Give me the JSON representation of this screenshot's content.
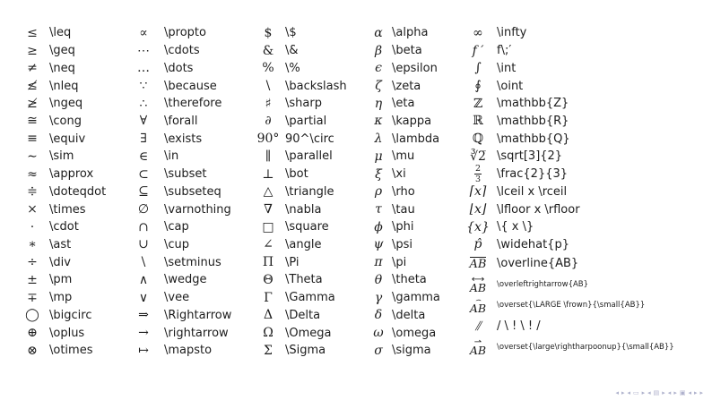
{
  "page": {
    "background": "#ffffff",
    "text_color": "#1c1c1c"
  },
  "table": {
    "columns": [
      {
        "rows": [
          {
            "sym": "≤",
            "cmd": "\\leq"
          },
          {
            "sym": "≥",
            "cmd": "\\geq"
          },
          {
            "sym": "≠",
            "cmd": "\\neq"
          },
          {
            "sym": "≰",
            "cmd": "\\nleq"
          },
          {
            "sym": "≱",
            "cmd": "\\ngeq"
          },
          {
            "sym": "≅",
            "cmd": "\\cong"
          },
          {
            "sym": "≡",
            "cmd": "\\equiv"
          },
          {
            "sym": "∼",
            "cmd": "\\sim"
          },
          {
            "sym": "≈",
            "cmd": "\\approx"
          },
          {
            "sym": "≑",
            "cmd": "\\doteqdot"
          },
          {
            "sym": "×",
            "cmd": "\\times"
          },
          {
            "sym": "·",
            "cmd": "\\cdot"
          },
          {
            "sym": "∗",
            "cmd": "\\ast"
          },
          {
            "sym": "÷",
            "cmd": "\\div"
          },
          {
            "sym": "±",
            "cmd": "\\pm"
          },
          {
            "sym": "∓",
            "cmd": "\\mp"
          },
          {
            "sym": "◯",
            "cmd": "\\bigcirc"
          },
          {
            "sym": "⊕",
            "cmd": "\\oplus"
          },
          {
            "sym": "⊗",
            "cmd": "\\otimes"
          }
        ]
      },
      {
        "rows": [
          {
            "sym": "∝",
            "cmd": "\\propto"
          },
          {
            "sym": "⋯",
            "cmd": "\\cdots"
          },
          {
            "sym": "…",
            "cmd": "\\dots"
          },
          {
            "sym": "∵",
            "cmd": "\\because"
          },
          {
            "sym": "∴",
            "cmd": "\\therefore"
          },
          {
            "sym": "∀",
            "cmd": "\\forall"
          },
          {
            "sym": "∃",
            "cmd": "\\exists"
          },
          {
            "sym": "∈",
            "cmd": "\\in"
          },
          {
            "sym": "⊂",
            "cmd": "\\subset"
          },
          {
            "sym": "⊆",
            "cmd": "\\subseteq"
          },
          {
            "sym": "∅",
            "cmd": "\\varnothing"
          },
          {
            "sym": "∩",
            "cmd": "\\cap"
          },
          {
            "sym": "∪",
            "cmd": "\\cup"
          },
          {
            "sym": "\\",
            "cmd": "\\setminus"
          },
          {
            "sym": "∧",
            "cmd": "\\wedge"
          },
          {
            "sym": "∨",
            "cmd": "\\vee"
          },
          {
            "sym": "⇒",
            "cmd": "\\Rightarrow"
          },
          {
            "sym": "→",
            "cmd": "\\rightarrow"
          },
          {
            "sym": "↦",
            "cmd": "\\mapsto"
          }
        ]
      },
      {
        "rows": [
          {
            "sym": "$",
            "cmd": "\\$"
          },
          {
            "sym": "&",
            "cmd": "\\&"
          },
          {
            "sym": "%",
            "cmd": "\\%"
          },
          {
            "sym": "\\",
            "cmd": "\\backslash"
          },
          {
            "sym": "♯",
            "cmd": "\\sharp"
          },
          {
            "sym": "∂",
            "cmd": "\\partial",
            "it": true
          },
          {
            "sym": "90°",
            "cmd": "90^\\circ"
          },
          {
            "sym": "∥",
            "cmd": "\\parallel"
          },
          {
            "sym": "⊥",
            "cmd": "\\bot"
          },
          {
            "sym": "△",
            "cmd": "\\triangle"
          },
          {
            "sym": "∇",
            "cmd": "\\nabla"
          },
          {
            "sym": "□",
            "cmd": "\\square"
          },
          {
            "sym": "∠",
            "cmd": "\\angle"
          },
          {
            "sym": "Π",
            "cmd": "\\Pi"
          },
          {
            "sym": "Θ",
            "cmd": "\\Theta"
          },
          {
            "sym": "Γ",
            "cmd": "\\Gamma"
          },
          {
            "sym": "Δ",
            "cmd": "\\Delta"
          },
          {
            "sym": "Ω",
            "cmd": "\\Omega"
          },
          {
            "sym": "Σ",
            "cmd": "\\Sigma"
          }
        ]
      },
      {
        "rows": [
          {
            "sym": "α",
            "cmd": "\\alpha",
            "it": true
          },
          {
            "sym": "β",
            "cmd": "\\beta",
            "it": true
          },
          {
            "sym": "ϵ",
            "cmd": "\\epsilon",
            "it": true
          },
          {
            "sym": "ζ",
            "cmd": "\\zeta",
            "it": true
          },
          {
            "sym": "η",
            "cmd": "\\eta",
            "it": true
          },
          {
            "sym": "κ",
            "cmd": "\\kappa",
            "it": true
          },
          {
            "sym": "λ",
            "cmd": "\\lambda",
            "it": true
          },
          {
            "sym": "μ",
            "cmd": "\\mu",
            "it": true
          },
          {
            "sym": "ξ",
            "cmd": "\\xi",
            "it": true
          },
          {
            "sym": "ρ",
            "cmd": "\\rho",
            "it": true
          },
          {
            "sym": "τ",
            "cmd": "\\tau",
            "it": true
          },
          {
            "sym": "ϕ",
            "cmd": "\\phi",
            "it": true
          },
          {
            "sym": "ψ",
            "cmd": "\\psi",
            "it": true
          },
          {
            "sym": "π",
            "cmd": "\\pi",
            "it": true
          },
          {
            "sym": "θ",
            "cmd": "\\theta",
            "it": true
          },
          {
            "sym": "γ",
            "cmd": "\\gamma",
            "it": true
          },
          {
            "sym": "δ",
            "cmd": "\\delta",
            "it": true
          },
          {
            "sym": "ω",
            "cmd": "\\omega",
            "it": true
          },
          {
            "sym": "σ",
            "cmd": "\\sigma",
            "it": true
          }
        ]
      },
      {
        "rows": [
          {
            "sym": "∞",
            "cmd": "\\infty"
          },
          {
            "sym": "f ′",
            "cmd": "f\\;′",
            "it": true
          },
          {
            "sym": "∫",
            "cmd": "\\int"
          },
          {
            "sym": "∮",
            "cmd": "\\oint"
          },
          {
            "sym": "ℤ",
            "cmd": "\\mathbb{Z}"
          },
          {
            "sym": "ℝ",
            "cmd": "\\mathbb{R}"
          },
          {
            "sym": "ℚ",
            "cmd": "\\mathbb{Q}"
          },
          {
            "sym": "∛2̅",
            "cmd": "\\sqrt[3]{2}"
          },
          {
            "kind": "frac",
            "top": "2",
            "bottom": "3",
            "cmd": "\\frac{2}{3}"
          },
          {
            "sym": "⌈x⌉",
            "cmd": "\\lceil x \\rceil",
            "it": true
          },
          {
            "sym": "⌊x⌋",
            "cmd": "\\lfloor x \\rfloor",
            "it": true
          },
          {
            "sym": "{x}",
            "cmd": "\\{ x \\}",
            "it": true
          },
          {
            "sym": "p̂",
            "cmd": "\\widehat{p}",
            "it": true
          },
          {
            "kind": "overline",
            "base": "AB",
            "cmd": "\\overline{AB}",
            "it": true
          },
          {
            "kind": "stack",
            "top": "⟷",
            "base": "AB",
            "cmd": "\\overleftrightarrow{AB}",
            "small": true,
            "it": true
          },
          {
            "kind": "stack",
            "top": "⌢",
            "base": "AB",
            "cmd": "\\overset{\\LARGE \\frown}{\\small{AB}}",
            "small": true,
            "it": true
          },
          {
            "sym": "⫽",
            "cmd": "/ \\ ! \\ ! /",
            "it": true
          },
          {
            "kind": "stack",
            "top": "⇀",
            "base": "AB",
            "cmd": "\\overset{\\large\\rightharpoonup}{\\small{AB}}",
            "small": true,
            "it": true
          }
        ]
      }
    ]
  },
  "navigation": {
    "color": "#aeb1cc",
    "glyphs": [
      {
        "name": "nav-slide-back-icon",
        "glyph": "◂"
      },
      {
        "name": "nav-slide-forward-icon",
        "glyph": "▸"
      },
      {
        "name": "nav-frame-back-icon",
        "glyph": "◂"
      },
      {
        "name": "nav-frame-icon",
        "glyph": "▭"
      },
      {
        "name": "nav-frame-forward-icon",
        "glyph": "▸"
      },
      {
        "name": "nav-section-back-icon",
        "glyph": "◂"
      },
      {
        "name": "nav-section-icon",
        "glyph": "▤"
      },
      {
        "name": "nav-section-forward-icon",
        "glyph": "▸"
      },
      {
        "name": "nav-presentation-back-icon",
        "glyph": "◂"
      },
      {
        "name": "nav-presentation-forward-icon",
        "glyph": "▸"
      },
      {
        "name": "nav-appendix-icon",
        "glyph": "▣"
      },
      {
        "name": "nav-back-icon",
        "glyph": "◂"
      },
      {
        "name": "nav-forward-icon",
        "glyph": "▸"
      },
      {
        "name": "nav-last-icon",
        "glyph": "▸"
      }
    ]
  }
}
